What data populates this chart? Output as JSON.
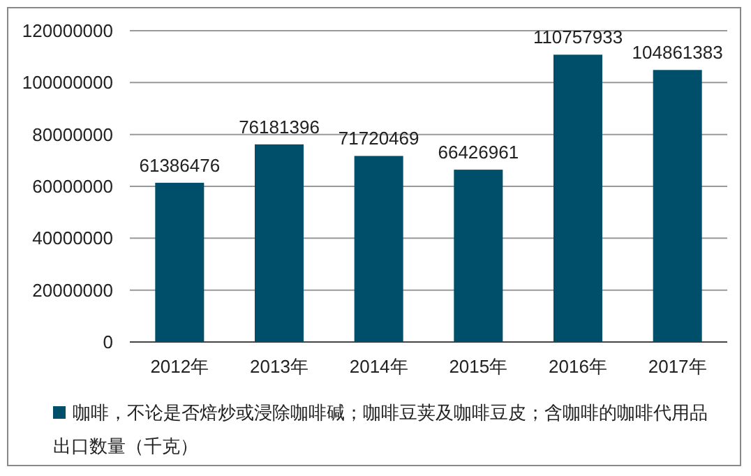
{
  "chart_data": {
    "type": "bar",
    "categories": [
      "2012年",
      "2013年",
      "2014年",
      "2015年",
      "2016年",
      "2017年"
    ],
    "series": [
      {
        "name": "咖啡，不论是否焙炒或浸除咖啡碱；咖啡豆荚及咖啡豆皮；含咖啡的咖啡代用品出口数量（千克）",
        "color": "#004f6a",
        "values": [
          61386476,
          76181396,
          71720469,
          66426961,
          110757933,
          104861383
        ]
      }
    ],
    "ylim": [
      0,
      120000000
    ],
    "yticks": [
      0,
      20000000,
      40000000,
      60000000,
      80000000,
      100000000,
      120000000
    ],
    "grid": "y",
    "data_labels": true,
    "legend": "bottom"
  }
}
